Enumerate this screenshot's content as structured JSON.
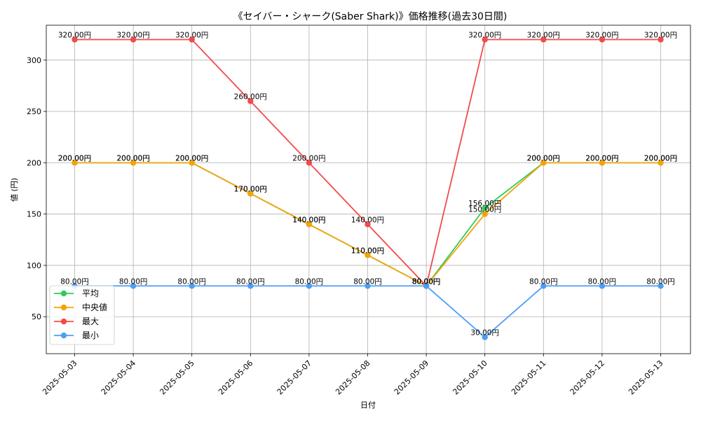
{
  "chart_data": {
    "type": "line",
    "title": "《セイバー・シャーク(Saber Shark)》価格推移(過去30日間)",
    "xlabel": "日付",
    "ylabel": "値 (円)",
    "x": [
      "2025-05-03",
      "2025-05-04",
      "2025-05-05",
      "2025-05-06",
      "2025-05-07",
      "2025-05-08",
      "2025-05-09",
      "2025-05-10",
      "2025-05-11",
      "2025-05-12",
      "2025-05-13"
    ],
    "ylim": [
      14,
      334
    ],
    "yticks": [
      "50",
      "100",
      "150",
      "200",
      "250",
      "300"
    ],
    "grid": true,
    "legend_position": "lower-left",
    "value_suffix": "円",
    "series": [
      {
        "name": "平均",
        "color": "#2ecc5a",
        "values": [
          200,
          200,
          200,
          170,
          140,
          110,
          80,
          156,
          200,
          200,
          200
        ]
      },
      {
        "name": "中央値",
        "color": "#f5a30a",
        "values": [
          200,
          200,
          200,
          170,
          140,
          110,
          80,
          150,
          200,
          200,
          200
        ]
      },
      {
        "name": "最大",
        "color": "#f24b4b",
        "values": [
          320,
          320,
          320,
          260,
          200,
          140,
          80,
          320,
          320,
          320,
          320
        ]
      },
      {
        "name": "最小",
        "color": "#4d9ef7",
        "values": [
          80,
          80,
          80,
          80,
          80,
          80,
          80,
          30,
          80,
          80,
          80
        ]
      }
    ]
  }
}
